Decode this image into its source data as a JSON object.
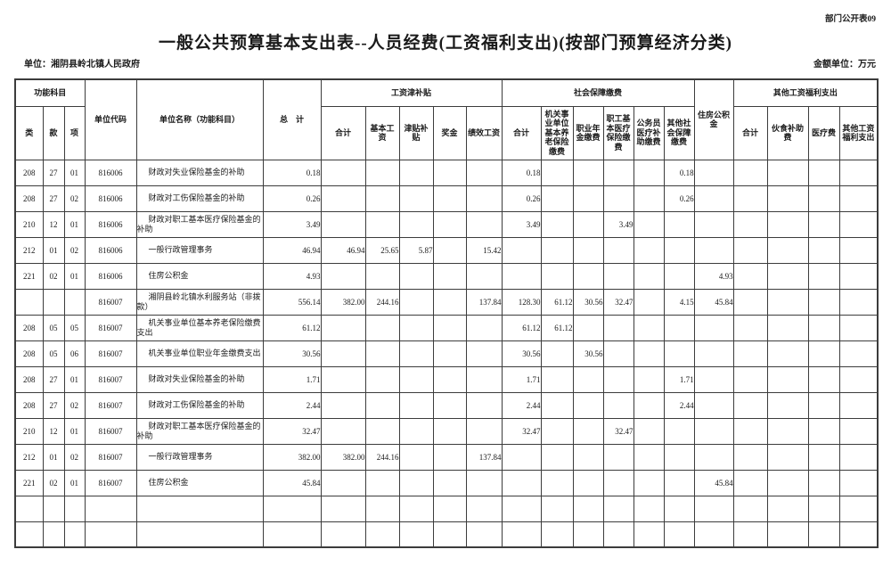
{
  "page": {
    "doc_label": "部门公开表09",
    "title": "一般公共预算基本支出表--人员经费(工资福利支出)(按部门预算经济分类)",
    "unit_label": "单位：湘阴县岭北镇人民政府",
    "amount_unit_label": "金额单位：万元"
  },
  "table": {
    "header": {
      "func_group": "功能科目",
      "col_class": "类",
      "col_section": "款",
      "col_item": "项",
      "unit_code": "单位代码",
      "unit_name": "单位名称（功能科目）",
      "grand_total": "总　计",
      "wage_group": "工资津补贴",
      "wage_cols": [
        "合计",
        "基本工资",
        "津贴补贴",
        "奖金",
        "绩效工资"
      ],
      "ss_group": "社会保障缴费",
      "ss_cols": [
        "合计",
        "机关事业单位基本养老保险缴费",
        "职业年金缴费",
        "职工基本医疗保险缴费",
        "公务员医疗补助缴费",
        "其他社会保障缴费"
      ],
      "housing": "住房公积金",
      "other_group": "其他工资福利支出",
      "other_cols": [
        "合计",
        "伙食补助费",
        "医疗费",
        "其他工资福利支出"
      ]
    },
    "rows": [
      [
        "208",
        "27",
        "01",
        "816006",
        "财政对失业保险基金的补助",
        "0.18",
        "",
        "",
        "",
        "",
        "",
        "0.18",
        "",
        "",
        "",
        "",
        "0.18",
        "",
        "",
        "",
        "",
        ""
      ],
      [
        "208",
        "27",
        "02",
        "816006",
        "财政对工伤保险基金的补助",
        "0.26",
        "",
        "",
        "",
        "",
        "",
        "0.26",
        "",
        "",
        "",
        "",
        "0.26",
        "",
        "",
        "",
        "",
        ""
      ],
      [
        "210",
        "12",
        "01",
        "816006",
        "财政对职工基本医疗保险基金的补助",
        "3.49",
        "",
        "",
        "",
        "",
        "",
        "3.49",
        "",
        "",
        "3.49",
        "",
        "",
        "",
        "",
        "",
        "",
        ""
      ],
      [
        "212",
        "01",
        "02",
        "816006",
        "一般行政管理事务",
        "46.94",
        "46.94",
        "25.65",
        "5.87",
        "",
        "15.42",
        "",
        "",
        "",
        "",
        "",
        "",
        "",
        "",
        "",
        "",
        ""
      ],
      [
        "221",
        "02",
        "01",
        "816006",
        "住房公积金",
        "4.93",
        "",
        "",
        "",
        "",
        "",
        "",
        "",
        "",
        "",
        "",
        "",
        "4.93",
        "",
        "",
        "",
        ""
      ],
      [
        "",
        "",
        "",
        "816007",
        "湘阴县岭北镇水利服务站（非拨款）",
        "556.14",
        "382.00",
        "244.16",
        "",
        "",
        "137.84",
        "128.30",
        "61.12",
        "30.56",
        "32.47",
        "",
        "4.15",
        "45.84",
        "",
        "",
        "",
        ""
      ],
      [
        "208",
        "05",
        "05",
        "816007",
        "机关事业单位基本养老保险缴费支出",
        "61.12",
        "",
        "",
        "",
        "",
        "",
        "61.12",
        "61.12",
        "",
        "",
        "",
        "",
        "",
        "",
        "",
        "",
        ""
      ],
      [
        "208",
        "05",
        "06",
        "816007",
        "机关事业单位职业年金缴费支出",
        "30.56",
        "",
        "",
        "",
        "",
        "",
        "30.56",
        "",
        "30.56",
        "",
        "",
        "",
        "",
        "",
        "",
        "",
        ""
      ],
      [
        "208",
        "27",
        "01",
        "816007",
        "财政对失业保险基金的补助",
        "1.71",
        "",
        "",
        "",
        "",
        "",
        "1.71",
        "",
        "",
        "",
        "",
        "1.71",
        "",
        "",
        "",
        "",
        ""
      ],
      [
        "208",
        "27",
        "02",
        "816007",
        "财政对工伤保险基金的补助",
        "2.44",
        "",
        "",
        "",
        "",
        "",
        "2.44",
        "",
        "",
        "",
        "",
        "2.44",
        "",
        "",
        "",
        "",
        ""
      ],
      [
        "210",
        "12",
        "01",
        "816007",
        "财政对职工基本医疗保险基金的补助",
        "32.47",
        "",
        "",
        "",
        "",
        "",
        "32.47",
        "",
        "",
        "32.47",
        "",
        "",
        "",
        "",
        "",
        "",
        ""
      ],
      [
        "212",
        "01",
        "02",
        "816007",
        "一般行政管理事务",
        "382.00",
        "382.00",
        "244.16",
        "",
        "",
        "137.84",
        "",
        "",
        "",
        "",
        "",
        "",
        "",
        "",
        "",
        "",
        ""
      ],
      [
        "221",
        "02",
        "01",
        "816007",
        "住房公积金",
        "45.84",
        "",
        "",
        "",
        "",
        "",
        "",
        "",
        "",
        "",
        "",
        "",
        "45.84",
        "",
        "",
        "",
        ""
      ],
      [
        "",
        "",
        "",
        "",
        "",
        "",
        "",
        "",
        "",
        "",
        "",
        "",
        "",
        "",
        "",
        "",
        "",
        "",
        "",
        "",
        "",
        ""
      ],
      [
        "",
        "",
        "",
        "",
        "",
        "",
        "",
        "",
        "",
        "",
        "",
        "",
        "",
        "",
        "",
        "",
        "",
        "",
        "",
        "",
        "",
        ""
      ]
    ]
  }
}
